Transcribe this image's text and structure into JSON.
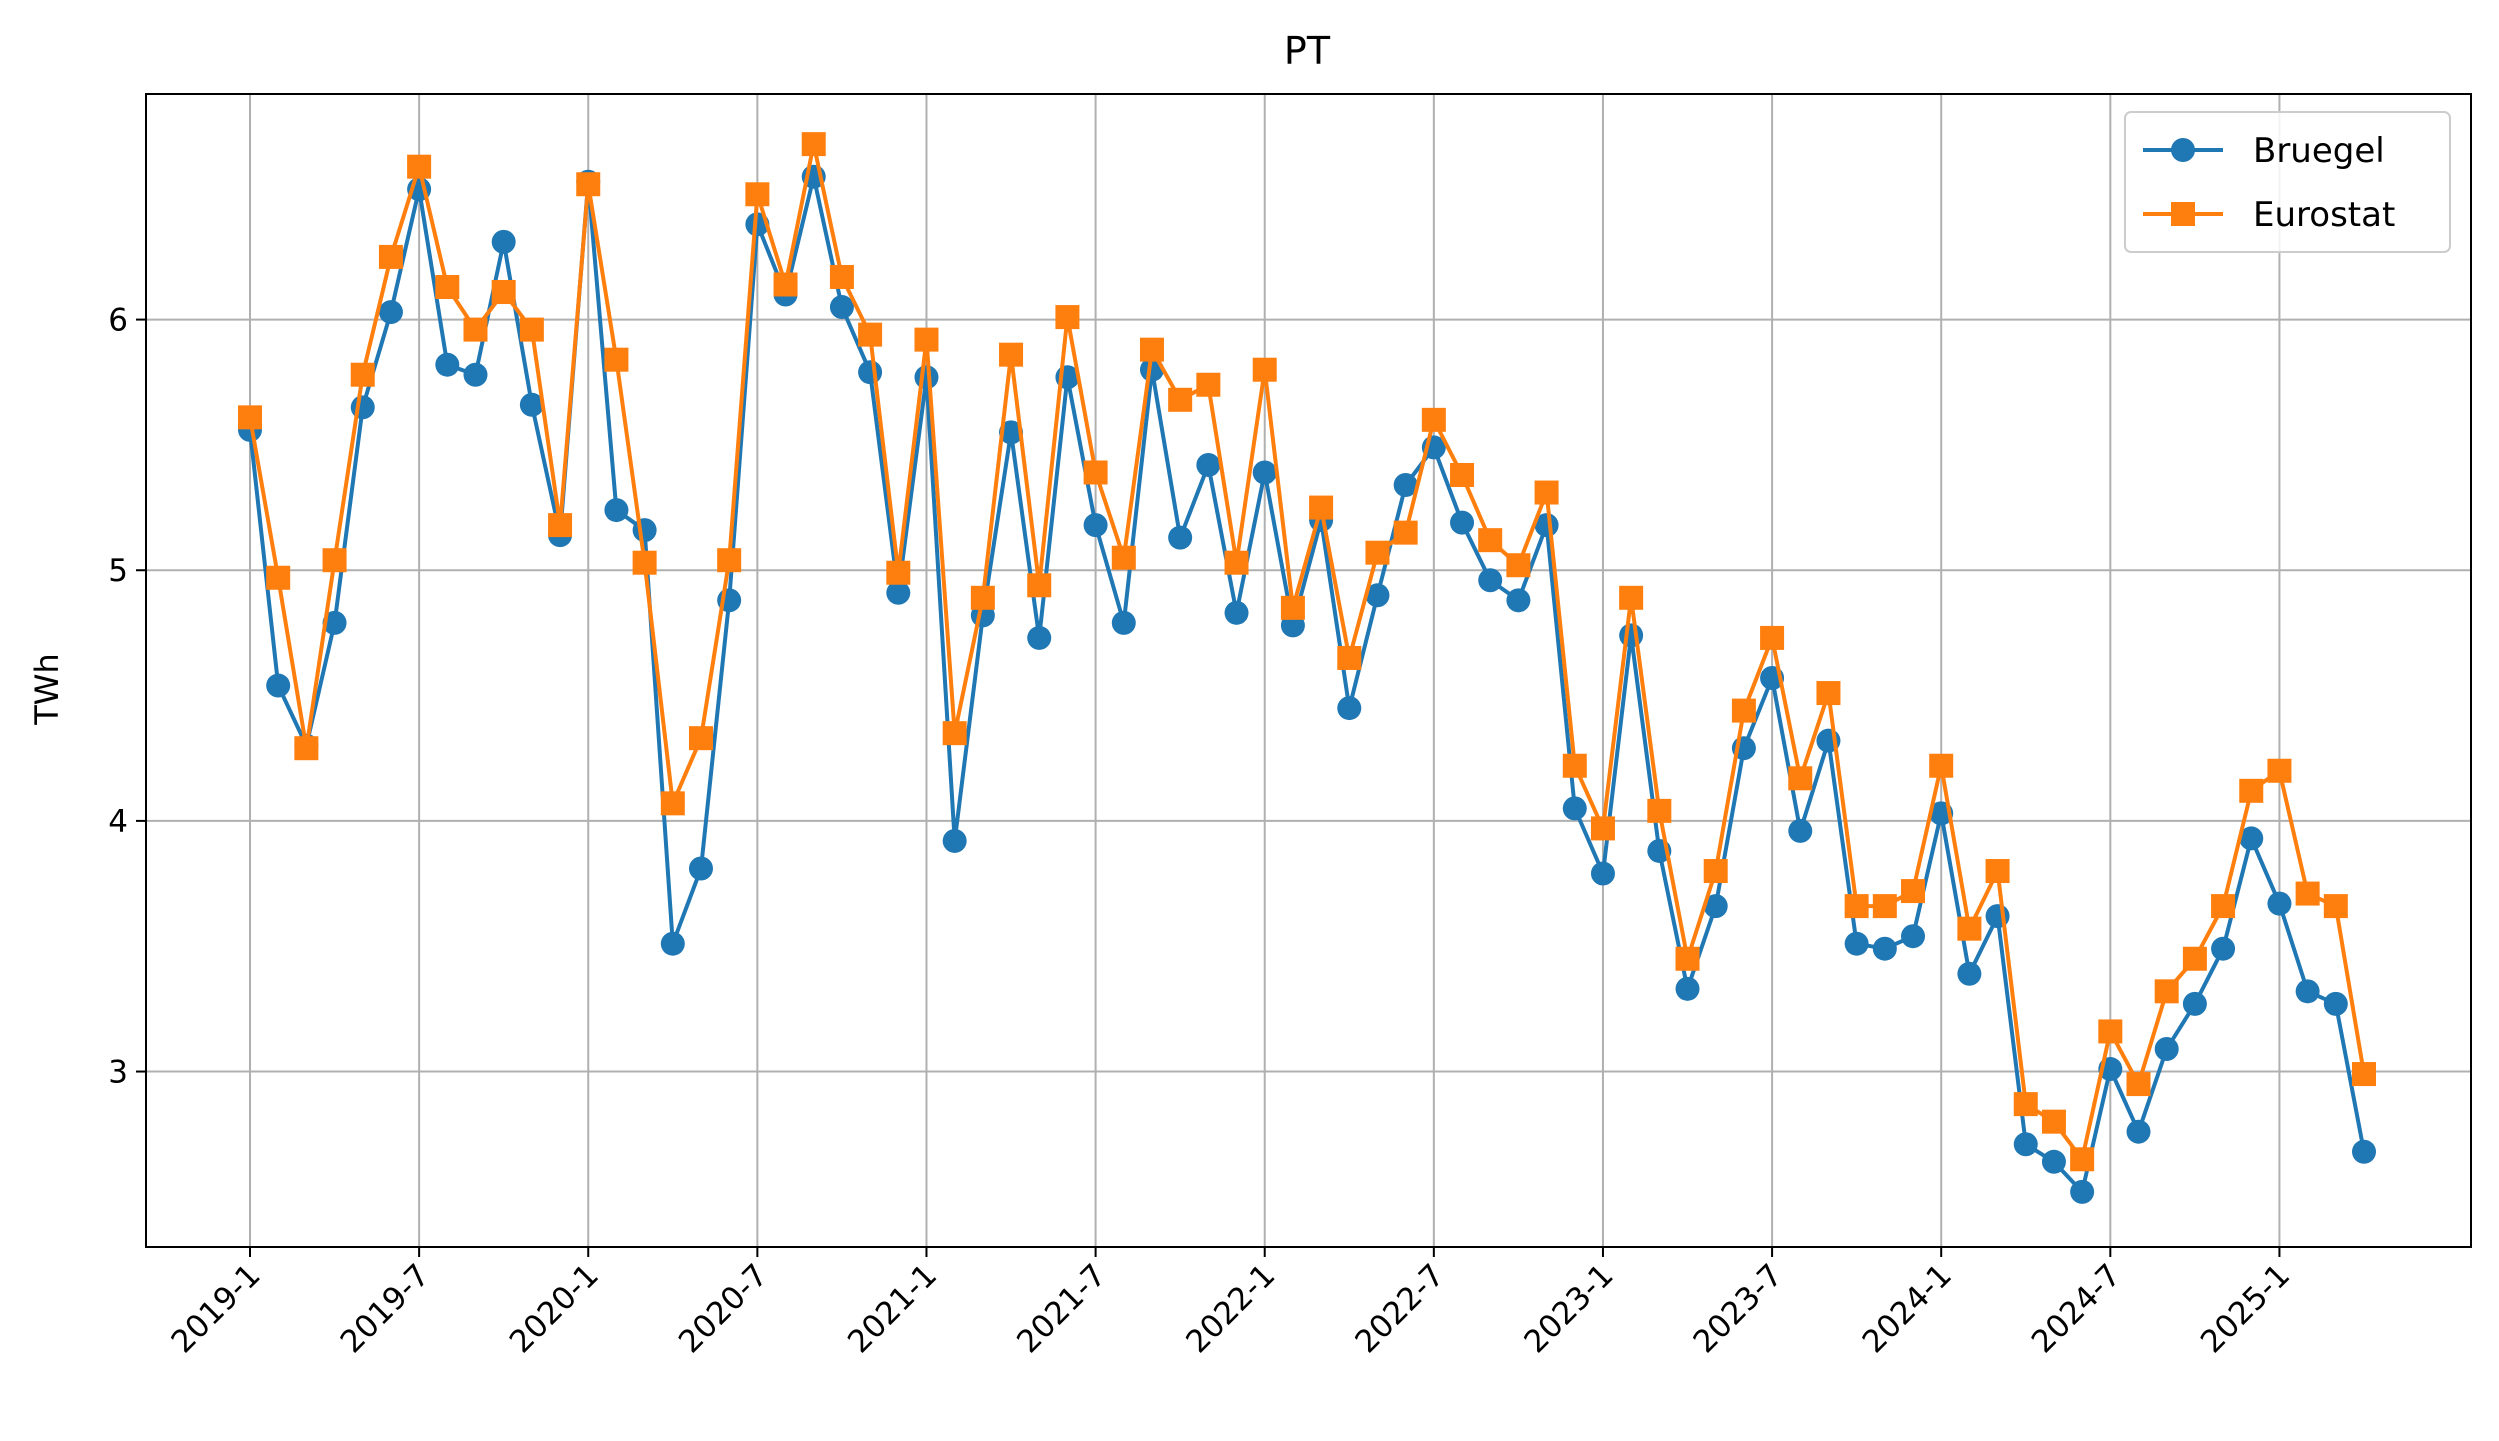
{
  "chart_data": {
    "type": "line",
    "title": "PT",
    "xlabel": "",
    "ylabel": "TWh",
    "grid": true,
    "legend_position": "top-right",
    "ylim": [
      2.3,
      6.9
    ],
    "yticks": [
      3,
      4,
      5,
      6
    ],
    "x_start": "2019-1",
    "x_tick_labels": [
      "2019-1",
      "2019-7",
      "2020-1",
      "2020-7",
      "2021-1",
      "2021-7",
      "2022-1",
      "2022-7",
      "2023-1",
      "2023-7",
      "2024-1",
      "2024-7",
      "2025-1"
    ],
    "series": [
      {
        "name": "Bruegel",
        "color": "#1f77b4",
        "marker": "circle",
        "values": [
          5.56,
          4.54,
          4.3,
          4.79,
          5.65,
          6.03,
          6.52,
          5.82,
          5.78,
          6.31,
          5.66,
          5.14,
          6.55,
          5.24,
          5.16,
          3.51,
          3.81,
          4.88,
          6.38,
          6.1,
          6.57,
          6.05,
          5.79,
          4.91,
          5.77,
          3.92,
          4.82,
          5.55,
          4.73,
          5.77,
          5.18,
          4.79,
          5.8,
          5.13,
          5.42,
          4.83,
          5.39,
          4.78,
          5.2,
          4.45,
          4.9,
          5.34,
          5.49,
          5.19,
          4.96,
          4.88,
          5.18,
          4.05,
          3.79,
          4.74,
          3.88,
          3.33,
          3.66,
          4.29,
          4.57,
          3.96,
          4.32,
          3.51,
          3.49,
          3.54,
          4.03,
          3.39,
          3.62,
          2.71,
          2.64,
          2.52,
          3.01,
          2.76,
          3.09,
          3.27,
          3.49,
          3.93,
          3.67,
          3.32,
          3.27,
          2.68
        ]
      },
      {
        "name": "Eurostat",
        "color": "#ff7f0e",
        "marker": "square",
        "values": [
          5.61,
          4.97,
          4.29,
          5.04,
          5.78,
          6.25,
          6.61,
          6.13,
          5.96,
          6.11,
          5.96,
          5.18,
          6.54,
          5.84,
          5.03,
          4.07,
          4.33,
          5.04,
          6.5,
          6.14,
          6.7,
          6.17,
          5.94,
          4.99,
          5.92,
          4.35,
          4.89,
          5.86,
          4.94,
          6.01,
          5.39,
          5.05,
          5.88,
          5.68,
          5.74,
          5.03,
          5.8,
          4.85,
          5.25,
          4.65,
          5.07,
          5.15,
          5.6,
          5.38,
          5.12,
          5.02,
          5.31,
          4.22,
          3.97,
          4.89,
          4.04,
          3.45,
          3.8,
          4.44,
          4.73,
          4.17,
          4.51,
          3.66,
          3.66,
          3.72,
          4.22,
          3.57,
          3.8,
          2.87,
          2.8,
          2.65,
          3.16,
          2.95,
          3.32,
          3.45,
          3.66,
          4.12,
          4.2,
          3.71,
          3.66,
          2.99
        ]
      }
    ]
  }
}
